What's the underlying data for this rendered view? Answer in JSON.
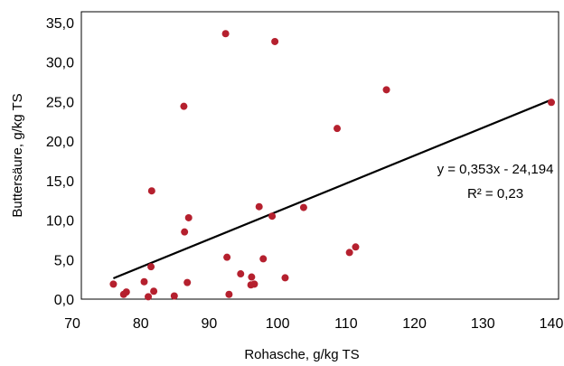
{
  "chart_data": {
    "type": "scatter",
    "xlabel": "Rohasche, g/kg TS",
    "ylabel": "Buttersäure, g/kg TS",
    "xlim": [
      70,
      140
    ],
    "ylim": [
      0,
      35
    ],
    "x_ticks": [
      "70",
      "80",
      "90",
      "100",
      "110",
      "120",
      "130",
      "140"
    ],
    "y_ticks": [
      "0,0",
      "5,0",
      "10,0",
      "15,0",
      "20,0",
      "25,0",
      "30,0",
      "35,0"
    ],
    "grid": false,
    "point_color": "#b5202e",
    "points": [
      {
        "x": 76.0,
        "y": 1.9
      },
      {
        "x": 77.5,
        "y": 0.6
      },
      {
        "x": 77.9,
        "y": 0.9
      },
      {
        "x": 80.5,
        "y": 2.2
      },
      {
        "x": 81.1,
        "y": 0.3
      },
      {
        "x": 81.5,
        "y": 4.1
      },
      {
        "x": 81.6,
        "y": 13.7
      },
      {
        "x": 81.9,
        "y": 1.0
      },
      {
        "x": 84.9,
        "y": 0.4
      },
      {
        "x": 86.3,
        "y": 24.4
      },
      {
        "x": 86.4,
        "y": 8.5
      },
      {
        "x": 86.8,
        "y": 2.1
      },
      {
        "x": 87.0,
        "y": 10.3
      },
      {
        "x": 92.4,
        "y": 33.6
      },
      {
        "x": 92.6,
        "y": 5.3
      },
      {
        "x": 92.9,
        "y": 0.6
      },
      {
        "x": 94.6,
        "y": 3.2
      },
      {
        "x": 96.1,
        "y": 1.8
      },
      {
        "x": 96.2,
        "y": 2.8
      },
      {
        "x": 96.6,
        "y": 1.9
      },
      {
        "x": 97.3,
        "y": 11.7
      },
      {
        "x": 97.9,
        "y": 5.1
      },
      {
        "x": 99.2,
        "y": 10.5
      },
      {
        "x": 99.6,
        "y": 32.6
      },
      {
        "x": 101.1,
        "y": 2.7
      },
      {
        "x": 103.8,
        "y": 11.6
      },
      {
        "x": 108.7,
        "y": 21.6
      },
      {
        "x": 110.5,
        "y": 5.9
      },
      {
        "x": 111.4,
        "y": 6.6
      },
      {
        "x": 115.9,
        "y": 26.5
      },
      {
        "x": 140.0,
        "y": 24.9
      }
    ],
    "trendline": {
      "slope": 0.353,
      "intercept": -24.194,
      "x_start": 76,
      "x_end": 140
    },
    "annotations": {
      "equation": "y = 0,353x - 24,194",
      "r_squared": "R² = 0,23"
    }
  }
}
